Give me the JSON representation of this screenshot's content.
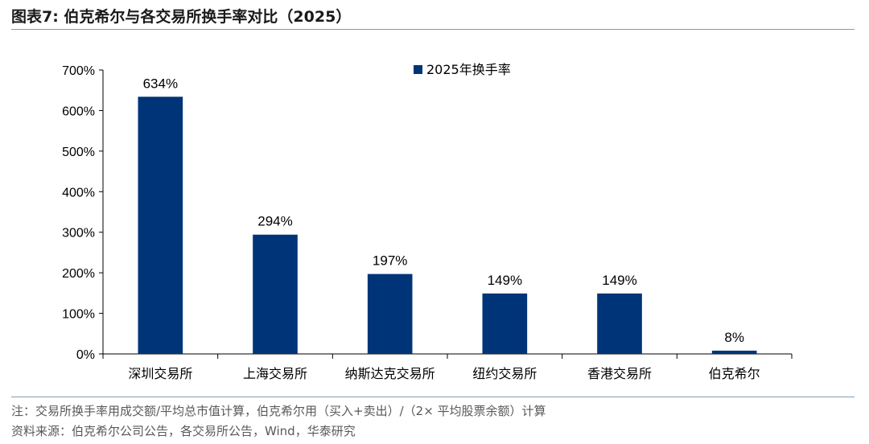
{
  "figure": {
    "title": "图表7:  伯克希尔与各交易所换手率对比（2025）",
    "note": "注：交易所换手率用成交额/平均总市值计算，伯克希尔用（买入+卖出）/（2× 平均股票余额）计算",
    "source": "资料来源：伯克希尔公司公告，各交易所公告，Wind，华泰研究"
  },
  "chart_data": {
    "type": "bar",
    "categories": [
      "深圳交易所",
      "上海交易所",
      "纳斯达克交易所",
      "纽约交易所",
      "香港交易所",
      "伯克希尔"
    ],
    "series": [
      {
        "name": "2025年换手率",
        "values": [
          634,
          294,
          197,
          149,
          149,
          8
        ],
        "data_labels": [
          "634%",
          "294%",
          "197%",
          "149%",
          "149%",
          "8%"
        ]
      }
    ],
    "y_ticks": [
      0,
      100,
      200,
      300,
      400,
      500,
      600,
      700
    ],
    "y_tick_labels": [
      "0%",
      "100%",
      "200%",
      "300%",
      "400%",
      "500%",
      "600%",
      "700%"
    ],
    "ylim": [
      0,
      700
    ],
    "xlabel": "",
    "ylabel": "",
    "grid": false,
    "legend_position": "top-right",
    "colors": {
      "bar": "#003478",
      "axis": "#000000"
    }
  }
}
